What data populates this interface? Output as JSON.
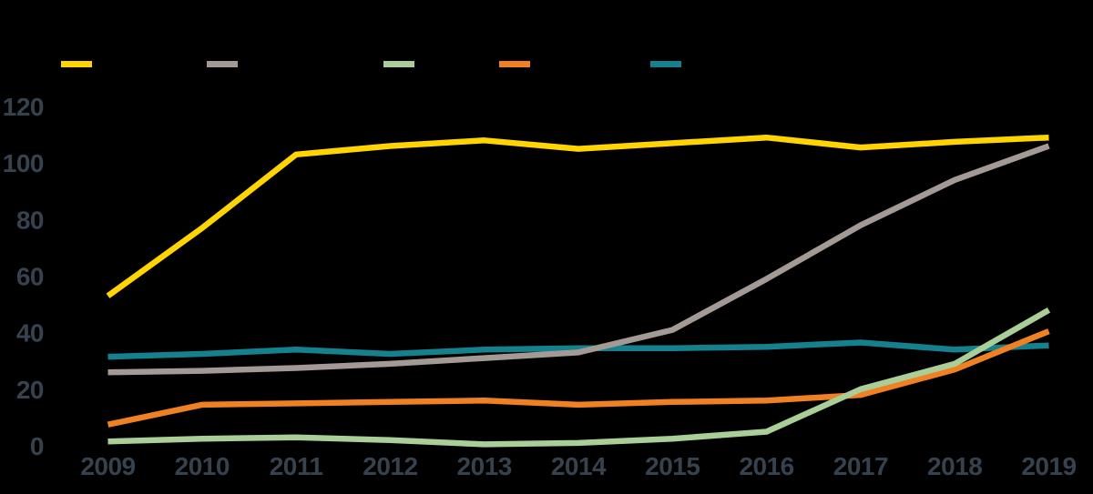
{
  "canvas": {
    "background": "#000000",
    "text_color": "#36424E"
  },
  "legend": {
    "position": "top",
    "items": [
      {
        "name": "yellow",
        "label": "",
        "color": "#FFD400"
      },
      {
        "name": "gray",
        "label": "",
        "color": "#A39A96"
      },
      {
        "name": "green",
        "label": "",
        "color": "#A9CE97"
      },
      {
        "name": "orange",
        "label": "",
        "color": "#EF8023"
      },
      {
        "name": "teal",
        "label": "",
        "color": "#15818E"
      }
    ]
  },
  "chart_data": {
    "type": "line",
    "title": "",
    "categories": [
      "2009",
      "2010",
      "2011",
      "2012",
      "2013",
      "2014",
      "2015",
      "2016",
      "2017",
      "2018",
      "2019"
    ],
    "y_axis": {
      "tick_values": [
        0,
        20,
        40,
        60,
        80,
        100,
        120
      ],
      "tick_labels": [
        "0",
        "20",
        "40",
        "60",
        "80",
        "100",
        "120"
      ],
      "ylim": [
        0,
        120
      ]
    },
    "grid": false,
    "legend_position": "top",
    "series": [
      {
        "name": "yellow",
        "color": "#FFD400",
        "values": [
          53,
          77,
          103,
          106,
          108,
          105,
          107,
          109,
          105.5,
          107.5,
          109
        ]
      },
      {
        "name": "gray",
        "color": "#A39A96",
        "values": [
          26,
          26.5,
          27.5,
          29,
          31,
          33,
          41,
          59,
          78,
          94,
          106
        ]
      },
      {
        "name": "green",
        "color": "#A9CE97",
        "values": [
          1.5,
          2.5,
          3,
          2,
          0.5,
          1,
          2.5,
          5,
          20,
          29,
          48
        ]
      },
      {
        "name": "orange",
        "color": "#EF8023",
        "values": [
          7.5,
          14.5,
          15,
          15.5,
          16,
          14.5,
          15.5,
          16,
          18,
          27,
          40.5
        ]
      },
      {
        "name": "teal",
        "color": "#15818E",
        "values": [
          31.5,
          32.5,
          34,
          32.5,
          34,
          34.5,
          34.5,
          35,
          36.5,
          34,
          35.5
        ]
      }
    ]
  }
}
